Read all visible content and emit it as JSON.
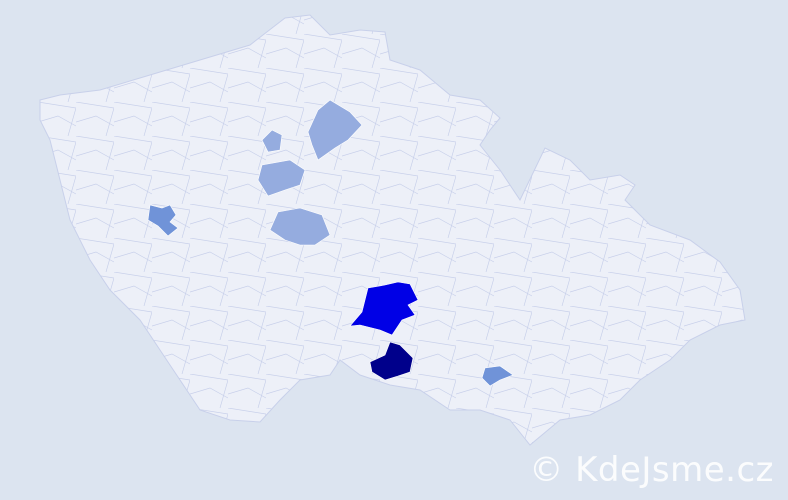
{
  "map": {
    "country_fill": "#edf0f8",
    "border_color": "#c8d0ea",
    "background": "#dce4f0",
    "highlighted_regions": [
      {
        "level": "highest",
        "color": "#00008b"
      },
      {
        "level": "high",
        "color": "#0000e6"
      },
      {
        "level": "medium",
        "color": "#7093d8"
      },
      {
        "level": "low",
        "color": "#95acdf"
      }
    ]
  },
  "watermark": "© KdeJsme.cz"
}
